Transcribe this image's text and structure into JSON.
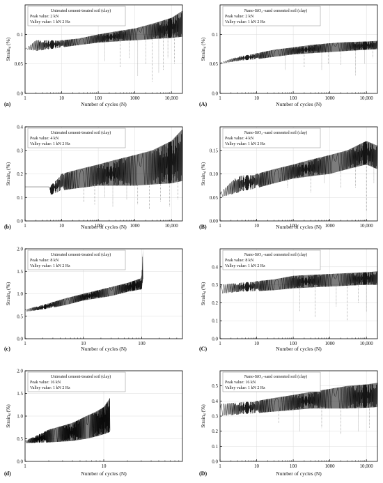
{
  "figure": {
    "ylabel_prefix": "Strain",
    "ylabel_sub": "d",
    "ylabel_unit": " (%)",
    "xlabel": "Number of cycles (N)"
  },
  "chart_data": [
    {
      "id": "a",
      "panel_label": "(a)",
      "type": "line",
      "xscale": "log",
      "xlim": [
        1,
        20000
      ],
      "ylim": [
        0.0,
        0.15
      ],
      "xticks": [
        {
          "v": 1,
          "label": "1"
        },
        {
          "v": 10,
          "label": "10"
        },
        {
          "v": 100,
          "label": "100"
        },
        {
          "v": 1000,
          "label": "1000"
        },
        {
          "v": 10000,
          "label": "10,000"
        }
      ],
      "yticks": [
        {
          "v": 0.0,
          "label": "0.0"
        },
        {
          "v": 0.05,
          "label": "0.05"
        },
        {
          "v": 0.1,
          "label": "0.1"
        }
      ],
      "legend": {
        "title": "Untreated cement-treated soil (clay)",
        "line1": "Peak value: 2 kN",
        "line2": "Valley value: 1 kN 2 Hz",
        "position": "top-left"
      },
      "series": {
        "upper": {
          "x": [
            1,
            2,
            5,
            10,
            30,
            100,
            300,
            1000,
            3000,
            10000,
            20000
          ],
          "y": [
            0.075,
            0.09,
            0.09,
            0.09,
            0.093,
            0.1,
            0.105,
            0.11,
            0.118,
            0.128,
            0.14
          ]
        },
        "lower": {
          "x": [
            1,
            2,
            5,
            10,
            30,
            100,
            300,
            1000,
            3000,
            10000,
            20000
          ],
          "y": [
            0.075,
            0.072,
            0.075,
            0.078,
            0.082,
            0.086,
            0.088,
            0.09,
            0.092,
            0.094,
            0.096
          ]
        }
      },
      "spikes": {
        "x": [
          150,
          400,
          700,
          1200,
          2000,
          3000,
          4500,
          6000,
          8000,
          12000
        ],
        "y": [
          0.055,
          0.045,
          0.06,
          0.03,
          0.05,
          0.02,
          0.035,
          0.04,
          0.06,
          0.05
        ]
      }
    },
    {
      "id": "A",
      "panel_label": "(A)",
      "type": "line",
      "xscale": "log",
      "xlim": [
        1,
        20000
      ],
      "ylim": [
        0.0,
        0.15
      ],
      "xticks": [
        {
          "v": 1,
          "label": "1"
        },
        {
          "v": 10,
          "label": "10"
        },
        {
          "v": 100,
          "label": "100"
        },
        {
          "v": 1000,
          "label": "1000"
        },
        {
          "v": 10000,
          "label": "10,000"
        }
      ],
      "yticks": [
        {
          "v": 0.0,
          "label": "0.0"
        },
        {
          "v": 0.05,
          "label": "0.05"
        },
        {
          "v": 0.1,
          "label": "0.1"
        }
      ],
      "legend": {
        "title": "Nano-SiO₂–sand cemented soil (clay)",
        "line1": "Peak value: 2 kN",
        "line2": "Valley value: 1 kN 2 Hz",
        "position": "top-left"
      },
      "series": {
        "upper": {
          "x": [
            1,
            3,
            10,
            30,
            100,
            300,
            1000,
            3000,
            10000,
            20000
          ],
          "y": [
            0.052,
            0.062,
            0.068,
            0.074,
            0.078,
            0.082,
            0.085,
            0.087,
            0.088,
            0.089
          ]
        },
        "lower": {
          "x": [
            1,
            3,
            10,
            30,
            100,
            300,
            1000,
            3000,
            10000,
            20000
          ],
          "y": [
            0.05,
            0.055,
            0.058,
            0.062,
            0.066,
            0.068,
            0.07,
            0.072,
            0.074,
            0.075
          ]
        }
      },
      "spikes": {
        "x": [
          60,
          200,
          600,
          900,
          2000,
          5000,
          9000,
          15000
        ],
        "y": [
          0.04,
          0.045,
          0.04,
          0.05,
          0.048,
          0.03,
          0.05,
          0.06
        ]
      }
    },
    {
      "id": "b",
      "panel_label": "(b)",
      "type": "line",
      "xscale": "log",
      "xlim": [
        1,
        20000
      ],
      "ylim": [
        0.0,
        0.4
      ],
      "xticks": [
        {
          "v": 1,
          "label": "1"
        },
        {
          "v": 10,
          "label": "10"
        },
        {
          "v": 100,
          "label": "100"
        },
        {
          "v": 1000,
          "label": "1000"
        },
        {
          "v": 10000,
          "label": "10,000"
        }
      ],
      "yticks": [
        {
          "v": 0.0,
          "label": "0.0"
        },
        {
          "v": 0.1,
          "label": "0.1"
        },
        {
          "v": 0.2,
          "label": "0.2"
        },
        {
          "v": 0.3,
          "label": "0.3"
        },
        {
          "v": 0.4,
          "label": "0.4"
        }
      ],
      "legend": {
        "title": "Untreated cement-treated soil (clay)",
        "line1": "Peak value: 4 kN",
        "line2": "Valley value: 1 kN 2 Hz",
        "position": "top-left"
      },
      "series": {
        "upper": {
          "x": [
            1,
            4.5,
            5,
            10,
            30,
            100,
            300,
            1000,
            3000,
            10000,
            20000
          ],
          "y": [
            0.145,
            0.145,
            0.15,
            0.2,
            0.22,
            0.24,
            0.26,
            0.28,
            0.3,
            0.34,
            0.39
          ]
        },
        "lower": {
          "x": [
            1,
            4.5,
            5,
            10,
            30,
            100,
            300,
            1000,
            3000,
            10000,
            20000
          ],
          "y": [
            0.145,
            0.145,
            0.11,
            0.13,
            0.14,
            0.15,
            0.15,
            0.15,
            0.155,
            0.16,
            0.17
          ]
        }
      },
      "spikes": {
        "x": [
          40,
          80,
          150,
          250,
          600,
          1200,
          2500,
          5000,
          9000,
          15000
        ],
        "y": [
          0.08,
          0.07,
          0.1,
          0.06,
          0.09,
          0.07,
          0.05,
          0.08,
          0.06,
          0.09
        ]
      }
    },
    {
      "id": "B",
      "panel_label": "(B)",
      "type": "line",
      "xscale": "log",
      "xlim": [
        1,
        20000
      ],
      "ylim": [
        0.0,
        0.2
      ],
      "xticks": [
        {
          "v": 1,
          "label": "1"
        },
        {
          "v": 10,
          "label": "10"
        },
        {
          "v": 100,
          "label": "100"
        },
        {
          "v": 1000,
          "label": "1000"
        },
        {
          "v": 10000,
          "label": "10,000"
        }
      ],
      "yticks": [
        {
          "v": 0.0,
          "label": "0.00"
        },
        {
          "v": 0.05,
          "label": "0.05"
        },
        {
          "v": 0.1,
          "label": "0.10"
        },
        {
          "v": 0.15,
          "label": "0.15"
        }
      ],
      "legend": {
        "title": "Nano-SiO₂–sand cemented soil (clay)",
        "line1": "Peak value: 4 kN",
        "line2": "Valley value: 1 kN 2 Hz",
        "position": "top-left"
      },
      "series": {
        "upper": {
          "x": [
            1,
            3,
            10,
            30,
            100,
            300,
            1000,
            3000,
            10000,
            20000
          ],
          "y": [
            0.06,
            0.095,
            0.1,
            0.11,
            0.12,
            0.13,
            0.14,
            0.15,
            0.17,
            0.16
          ]
        },
        "lower": {
          "x": [
            1,
            3,
            10,
            30,
            100,
            300,
            1000,
            3000,
            10000,
            20000
          ],
          "y": [
            0.05,
            0.06,
            0.07,
            0.08,
            0.09,
            0.095,
            0.1,
            0.11,
            0.12,
            0.11
          ]
        }
      },
      "spikes": {
        "x": [
          70,
          300,
          700,
          2000,
          5000,
          10000,
          16000
        ],
        "y": [
          0.07,
          0.06,
          0.08,
          0.07,
          0.07,
          0.02,
          0.08
        ]
      }
    },
    {
      "id": "c",
      "panel_label": "(c)",
      "type": "line",
      "xscale": "log",
      "xlim": [
        1,
        500
      ],
      "ylim": [
        0.0,
        2.0
      ],
      "xticks": [
        {
          "v": 1,
          "label": "1"
        },
        {
          "v": 10,
          "label": "10"
        },
        {
          "v": 100,
          "label": "100"
        }
      ],
      "yticks": [
        {
          "v": 0.0,
          "label": "0.0"
        },
        {
          "v": 0.5,
          "label": "0.5"
        },
        {
          "v": 1.0,
          "label": "1.0"
        },
        {
          "v": 1.5,
          "label": "1.5"
        },
        {
          "v": 2.0,
          "label": "2.0"
        }
      ],
      "legend": {
        "title": "Untreated cement-treated soil (clay)",
        "line1": "Peak value: 8 kN",
        "line2": "Valley value: 1 kN 2 Hz",
        "position": "top-left"
      },
      "series": {
        "upper": {
          "x": [
            1,
            2,
            5,
            10,
            30,
            60,
            100,
            105
          ],
          "y": [
            0.65,
            0.75,
            0.9,
            1.0,
            1.15,
            1.25,
            1.35,
            2.0
          ]
        },
        "lower": {
          "x": [
            1,
            2,
            5,
            10,
            30,
            60,
            100,
            105
          ],
          "y": [
            0.6,
            0.65,
            0.75,
            0.85,
            0.95,
            1.05,
            1.1,
            1.3
          ]
        }
      },
      "spikes": {
        "x": [],
        "y": []
      }
    },
    {
      "id": "C",
      "panel_label": "(C)",
      "type": "line",
      "xscale": "log",
      "xlim": [
        1,
        20000
      ],
      "ylim": [
        0.0,
        0.5
      ],
      "xticks": [
        {
          "v": 1,
          "label": "1"
        },
        {
          "v": 10,
          "label": "10"
        },
        {
          "v": 100,
          "label": "100"
        },
        {
          "v": 1000,
          "label": "1000"
        },
        {
          "v": 10000,
          "label": "10,000"
        }
      ],
      "yticks": [
        {
          "v": 0.0,
          "label": "0.0"
        },
        {
          "v": 0.1,
          "label": "0.1"
        },
        {
          "v": 0.2,
          "label": "0.2"
        },
        {
          "v": 0.3,
          "label": "0.3"
        },
        {
          "v": 0.4,
          "label": "0.4"
        }
      ],
      "legend": {
        "title": "Nano-SiO₂–sand cemented soil (clay)",
        "line1": "Peak value: 8 kN",
        "line2": "Valley value: 1 kN 2 Hz",
        "position": "top-left"
      },
      "series": {
        "upper": {
          "x": [
            1,
            3,
            10,
            30,
            100,
            300,
            1000,
            3000,
            10000,
            20000
          ],
          "y": [
            0.3,
            0.31,
            0.32,
            0.33,
            0.35,
            0.355,
            0.36,
            0.365,
            0.37,
            0.375
          ]
        },
        "lower": {
          "x": [
            1,
            3,
            10,
            30,
            100,
            300,
            1000,
            3000,
            10000,
            20000
          ],
          "y": [
            0.25,
            0.26,
            0.265,
            0.27,
            0.28,
            0.285,
            0.29,
            0.295,
            0.3,
            0.3
          ]
        }
      },
      "spikes": {
        "x": [
          150,
          400,
          1500,
          3000,
          6000,
          10000
        ],
        "y": [
          0.15,
          0.12,
          0.18,
          0.1,
          0.2,
          0.15
        ]
      }
    },
    {
      "id": "d",
      "panel_label": "(d)",
      "type": "line",
      "xscale": "log",
      "xlim": [
        1,
        100
      ],
      "ylim": [
        0.0,
        2.0
      ],
      "xticks": [
        {
          "v": 1,
          "label": "1"
        },
        {
          "v": 10,
          "label": "10"
        }
      ],
      "yticks": [
        {
          "v": 0.0,
          "label": "0.0"
        },
        {
          "v": 0.5,
          "label": "0.5"
        },
        {
          "v": 1.0,
          "label": "1.0"
        },
        {
          "v": 1.5,
          "label": "1.5"
        },
        {
          "v": 2.0,
          "label": "2.0"
        }
      ],
      "legend": {
        "title": "Untreated cement-treated soil (clay)",
        "line1": "Peak value: 16 kN",
        "line2": "Valley value: 1 kN 2 Hz",
        "position": "top-left"
      },
      "series": {
        "upper": {
          "x": [
            1,
            2,
            4,
            6,
            8,
            10,
            12
          ],
          "y": [
            0.45,
            0.7,
            0.85,
            1.0,
            1.1,
            1.2,
            1.4
          ]
        },
        "lower": {
          "x": [
            1,
            2,
            4,
            6,
            8,
            10,
            12
          ],
          "y": [
            0.4,
            0.42,
            0.45,
            0.5,
            0.55,
            0.6,
            0.65
          ]
        }
      },
      "spikes": {
        "x": [],
        "y": []
      }
    },
    {
      "id": "D",
      "panel_label": "(D)",
      "type": "line",
      "xscale": "log",
      "xlim": [
        1,
        20000
      ],
      "ylim": [
        0.0,
        0.6
      ],
      "xticks": [
        {
          "v": 1,
          "label": "1"
        },
        {
          "v": 10,
          "label": "10"
        },
        {
          "v": 100,
          "label": "100"
        },
        {
          "v": 1000,
          "label": "1000"
        },
        {
          "v": 10000,
          "label": "10,000"
        }
      ],
      "yticks": [
        {
          "v": 0.0,
          "label": "0.0"
        },
        {
          "v": 0.1,
          "label": "0.1"
        },
        {
          "v": 0.2,
          "label": "0.2"
        },
        {
          "v": 0.3,
          "label": "0.3"
        },
        {
          "v": 0.4,
          "label": "0.4"
        },
        {
          "v": 0.5,
          "label": "0.5"
        }
      ],
      "legend": {
        "title": "Nano-SiO₂–sand cemented soil (clay)",
        "line1": "Peak value: 16 kN",
        "line2": "Valley value: 1 kN 2 Hz",
        "position": "top-left"
      },
      "series": {
        "upper": {
          "x": [
            1,
            3,
            10,
            30,
            100,
            300,
            1000,
            3000,
            10000,
            20000
          ],
          "y": [
            0.38,
            0.39,
            0.4,
            0.42,
            0.44,
            0.46,
            0.48,
            0.5,
            0.51,
            0.52
          ]
        },
        "lower": {
          "x": [
            1,
            3,
            10,
            30,
            100,
            300,
            1000,
            3000,
            10000,
            20000
          ],
          "y": [
            0.3,
            0.31,
            0.32,
            0.33,
            0.34,
            0.35,
            0.35,
            0.35,
            0.355,
            0.36
          ]
        }
      },
      "spikes": {
        "x": [
          40,
          150,
          600,
          2000,
          6000,
          12000
        ],
        "y": [
          0.25,
          0.2,
          0.22,
          0.18,
          0.2,
          0.22
        ]
      }
    }
  ]
}
